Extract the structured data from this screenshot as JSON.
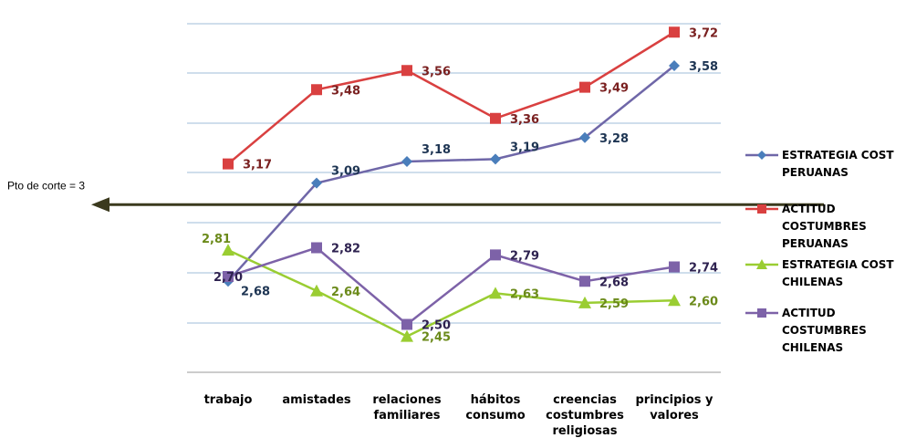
{
  "chart_data": {
    "type": "line",
    "categories": [
      [
        "trabajo"
      ],
      [
        "amistades"
      ],
      [
        "relaciones",
        "familiares"
      ],
      [
        "hábitos",
        "consumo"
      ],
      [
        "creencias",
        "costumbres",
        "religiosas"
      ],
      [
        "principios y",
        "valores"
      ]
    ],
    "ylim": [
      2.3,
      3.8
    ],
    "grid": true,
    "legend_position": "right",
    "series": [
      {
        "name": [
          "ESTRATEGIA COST",
          "PERUANAS"
        ],
        "color": "#4a7ebb",
        "line_color": "#6f67a8",
        "marker": "diamond",
        "values": [
          2.68,
          3.09,
          3.18,
          3.19,
          3.28,
          3.58
        ],
        "labels": [
          "2,68",
          "3,09",
          "3,18",
          "3,19",
          "3,28",
          "3,58"
        ]
      },
      {
        "name": [
          "ACTITUD",
          "COSTUMBRES",
          "PERUANAS"
        ],
        "color": "#d94040",
        "line_color": "#d94040",
        "marker": "square",
        "values": [
          3.17,
          3.48,
          3.56,
          3.36,
          3.49,
          3.72
        ],
        "labels": [
          "3,17",
          "3,48",
          "3,56",
          "3,36",
          "3,49",
          "3,72"
        ]
      },
      {
        "name": [
          "ESTRATEGIA COST",
          "CHILENAS"
        ],
        "color": "#9acd32",
        "line_color": "#9acd32",
        "marker": "triangle",
        "values": [
          2.81,
          2.64,
          2.45,
          2.63,
          2.59,
          2.6
        ],
        "labels": [
          "2,81",
          "2,64",
          "2,45",
          "2,63",
          "2,59",
          "2,60"
        ]
      },
      {
        "name": [
          "ACTITUD",
          "COSTUMBRES",
          "CHILENAS"
        ],
        "color": "#7d62a8",
        "line_color": "#7d62a8",
        "marker": "square",
        "values": [
          2.7,
          2.82,
          2.5,
          2.79,
          2.68,
          2.74
        ],
        "labels": [
          "2,70",
          "2,82",
          "2,50",
          "2,79",
          "2,68",
          "2,74"
        ]
      }
    ],
    "annotation": {
      "text": "Pto de corte = 3",
      "value": 3.0,
      "color": "#3b3a1e"
    }
  }
}
